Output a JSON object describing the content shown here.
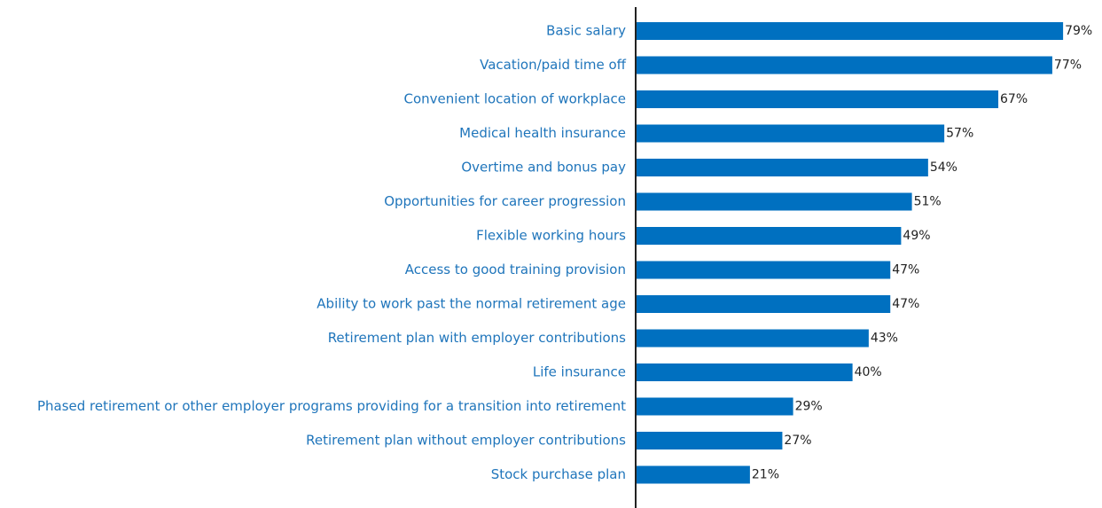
{
  "chart_data": {
    "type": "bar",
    "orientation": "horizontal",
    "categories": [
      "Basic salary",
      "Vacation/paid time off",
      "Convenient location of workplace",
      "Medical health insurance",
      "Overtime and bonus pay",
      "Opportunities for career progression",
      "Flexible working hours",
      "Access to good training provision",
      "Ability to work past the normal retirement age",
      "Retirement plan with employer contributions",
      "Life insurance",
      "Phased retirement or other employer programs providing for a transition into retirement",
      "Retirement plan without employer contributions",
      "Stock purchase plan"
    ],
    "values": [
      79,
      77,
      67,
      57,
      54,
      51,
      49,
      47,
      47,
      43,
      40,
      29,
      27,
      21
    ],
    "value_labels": [
      "79%",
      "77%",
      "67%",
      "57%",
      "54%",
      "51%",
      "49%",
      "47%",
      "47%",
      "43%",
      "40%",
      "29%",
      "27%",
      "21%"
    ],
    "color": "#0070c0"
  }
}
